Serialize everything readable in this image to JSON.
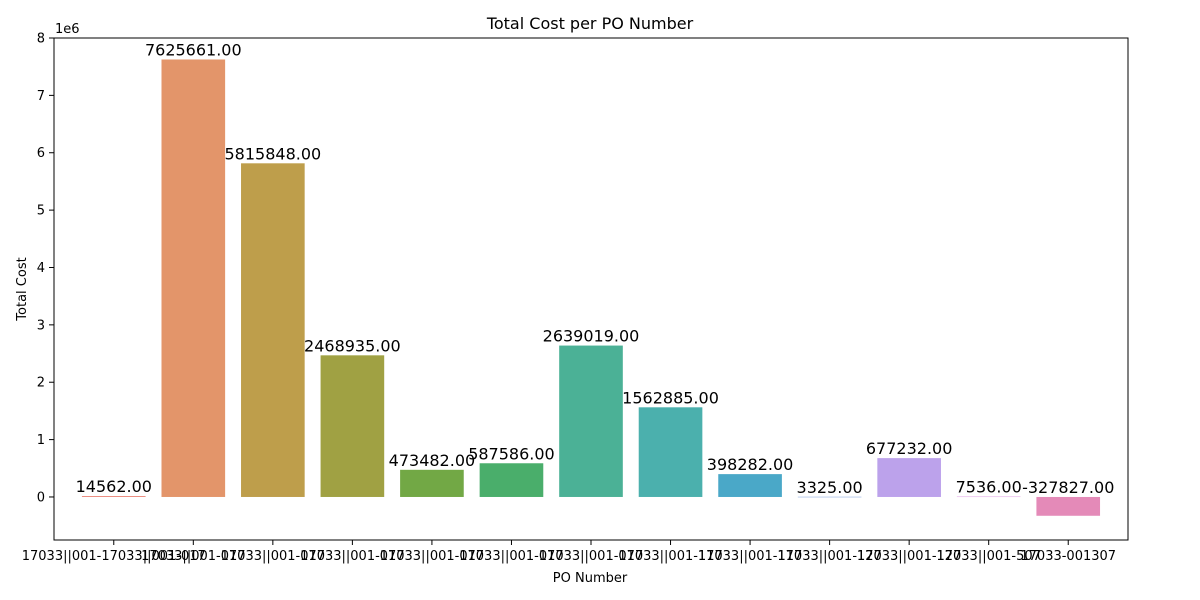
{
  "chart_data": {
    "type": "bar",
    "title": "Total Cost per PO Number",
    "xlabel": "PO Number",
    "ylabel": "Total Cost",
    "y_scale_label": "1e6",
    "y_ticks": [
      "0",
      "1",
      "2",
      "3",
      "4",
      "5",
      "6",
      "7",
      "8"
    ],
    "ylim": [
      -750000,
      8000000
    ],
    "grid": false,
    "categories": [
      "17033||001-17033||001-017",
      "17033||001-017",
      "17033||001-017",
      "17033||001-017",
      "17033||001-017",
      "17033||001-017",
      "17033||001-017",
      "17033||001-117",
      "17033||001-117",
      "17033||001-127",
      "17033||001-127",
      "17033||001-507",
      "17033-001307"
    ],
    "values": [
      14562,
      7625661,
      5815848,
      2468935,
      473482,
      587586,
      2639019,
      1562885,
      398282,
      3325,
      677232,
      7536,
      -327827
    ],
    "data_labels": [
      "14562.00",
      "7625661.00",
      "5815848.00",
      "2468935.00",
      "473482.00",
      "587586.00",
      "2639019.00",
      "1562885.00",
      "398282.00",
      "3325.00",
      "677232.00",
      "7536.00",
      "-327827.00"
    ],
    "colors": [
      "#e8796a",
      "#e3956a",
      "#be9e4b",
      "#a0a143",
      "#72a845",
      "#4aae6b",
      "#4bb196",
      "#4bb0ad",
      "#4aa8c8",
      "#7ea1dc",
      "#bca2eb",
      "#e099e2",
      "#e48ab8"
    ]
  }
}
